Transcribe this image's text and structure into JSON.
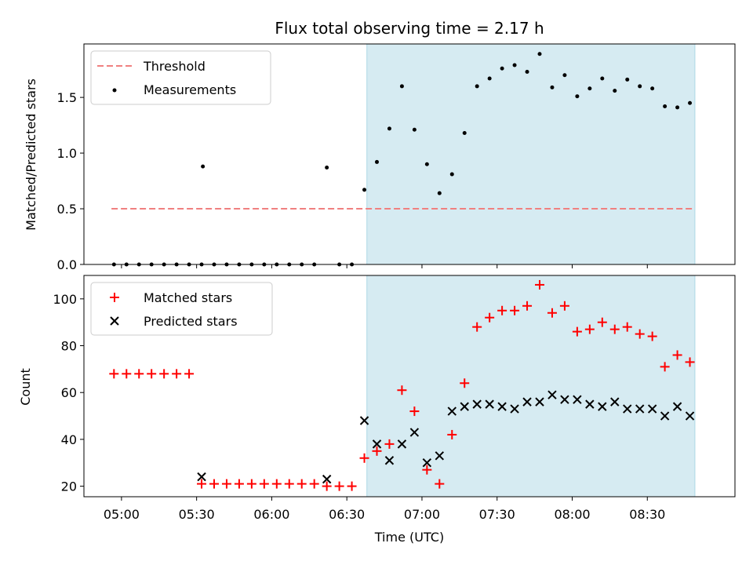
{
  "chart_data": {
    "type": "scatter",
    "title": "Flux total observing time = 2.17 h",
    "xlabel": "Time (UTC)",
    "x_ticks": [
      "05:00",
      "05:30",
      "06:00",
      "06:30",
      "07:00",
      "07:30",
      "08:00",
      "08:30"
    ],
    "x_tick_minutes": [
      300,
      330,
      360,
      390,
      420,
      450,
      480,
      510
    ],
    "xlim_minutes": [
      285,
      545
    ],
    "shaded_region_minutes": [
      398,
      529
    ],
    "colors": {
      "threshold": "#f08080",
      "measurements": "#000000",
      "matched": "#ff0000",
      "predicted": "#000000",
      "shade": "#add8e6"
    },
    "top": {
      "ylabel": "Matched/Predicted stars",
      "ylim": [
        0,
        1.98
      ],
      "y_ticks": [
        "0.0",
        "0.5",
        "1.0",
        "1.5"
      ],
      "y_tick_values": [
        0,
        0.5,
        1.0,
        1.5
      ],
      "legend": {
        "position": "upper-left",
        "threshold_label": "Threshold",
        "measurements_label": "Measurements"
      },
      "threshold": {
        "value": 0.5,
        "x_start": 296,
        "x_end": 529
      },
      "measurements": {
        "x": [
          297,
          302,
          307,
          312,
          317,
          322,
          327,
          332,
          332.5,
          337,
          342,
          347,
          352,
          357,
          362,
          367,
          372,
          377,
          382,
          387,
          392,
          397,
          402,
          407,
          412,
          417,
          422,
          427,
          432,
          437,
          442,
          447,
          452,
          457,
          462,
          467,
          472,
          477,
          482,
          487,
          492,
          497,
          502,
          507,
          512,
          517,
          522,
          527
        ],
        "y": [
          0,
          0,
          0,
          0,
          0,
          0,
          0,
          0,
          0.88,
          0,
          0,
          0,
          0,
          0,
          0,
          0,
          0,
          0,
          0.87,
          0,
          0,
          0.67,
          0.92,
          1.22,
          1.6,
          1.21,
          0.9,
          0.64,
          0.81,
          1.18,
          1.6,
          1.67,
          1.76,
          1.79,
          1.73,
          1.89,
          1.59,
          1.7,
          1.51,
          1.58,
          1.67,
          1.56,
          1.66,
          1.6,
          1.58,
          1.42,
          1.41,
          1.45
        ]
      }
    },
    "bottom": {
      "ylabel": "Count",
      "ylim": [
        15.5,
        110
      ],
      "y_ticks": [
        "20",
        "40",
        "60",
        "80",
        "100"
      ],
      "y_tick_values": [
        20,
        40,
        60,
        80,
        100
      ],
      "legend": {
        "position": "upper-left",
        "matched_label": "Matched stars",
        "predicted_label": "Predicted stars"
      },
      "matched": {
        "x": [
          297,
          302,
          307,
          312,
          317,
          322,
          327,
          332,
          337,
          342,
          347,
          352,
          357,
          362,
          367,
          372,
          377,
          382,
          387,
          392,
          397,
          402,
          407,
          412,
          417,
          422,
          427,
          432,
          437,
          442,
          447,
          452,
          457,
          462,
          467,
          472,
          477,
          482,
          487,
          492,
          497,
          502,
          507,
          512,
          517,
          522,
          527
        ],
        "y": [
          68,
          68,
          68,
          68,
          68,
          68,
          68,
          21,
          21,
          21,
          21,
          21,
          21,
          21,
          21,
          21,
          21,
          20,
          20,
          20,
          32,
          35,
          38,
          61,
          52,
          27,
          21,
          42,
          64,
          88,
          92,
          95,
          95,
          97,
          106,
          94,
          97,
          86,
          87,
          90,
          87,
          88,
          85,
          84,
          71,
          76,
          73
        ]
      },
      "predicted": {
        "x": [
          332,
          382,
          397,
          402,
          407,
          412,
          417,
          422,
          427,
          432,
          437,
          442,
          447,
          452,
          457,
          462,
          467,
          472,
          477,
          482,
          487,
          492,
          497,
          502,
          507,
          512,
          517,
          522,
          527
        ],
        "y": [
          24,
          23,
          48,
          38,
          31,
          38,
          43,
          30,
          33,
          52,
          54,
          55,
          55,
          54,
          53,
          56,
          56,
          59,
          57,
          57,
          55,
          54,
          56,
          53,
          53,
          53,
          50,
          54,
          50
        ]
      }
    }
  }
}
